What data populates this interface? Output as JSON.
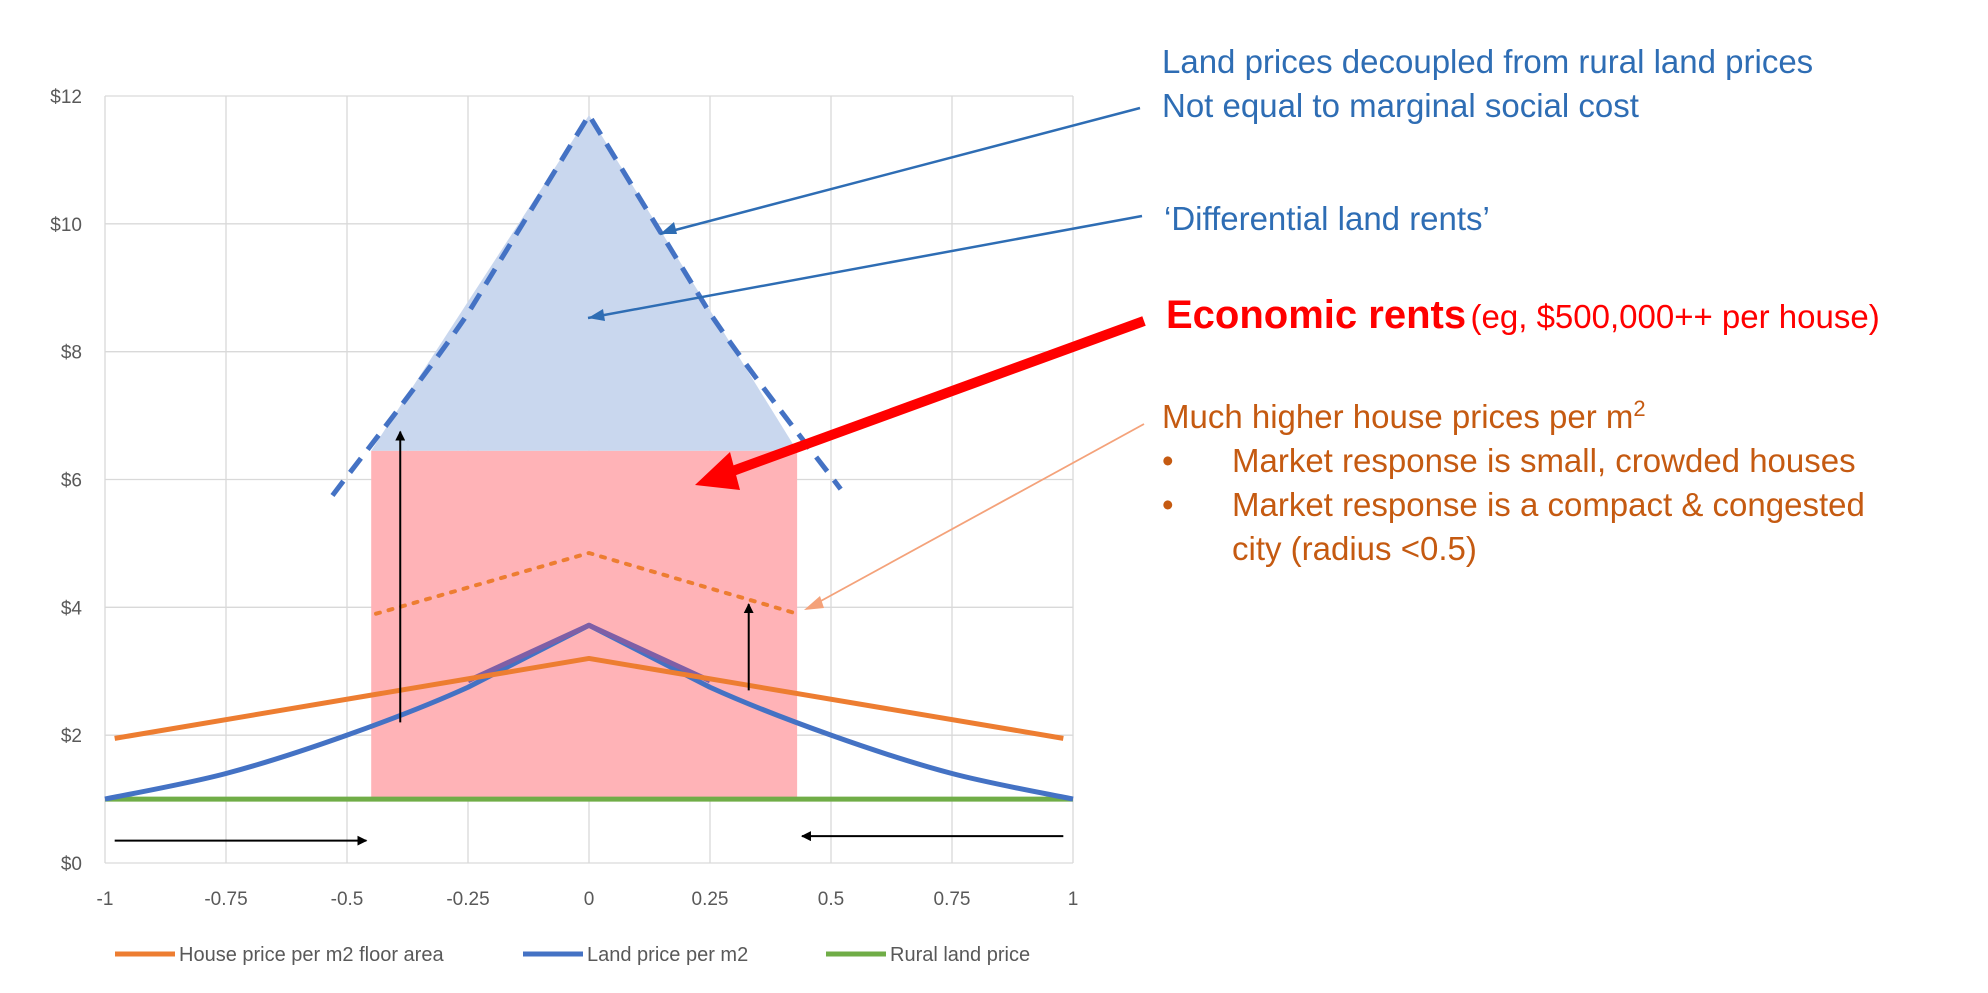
{
  "chart_data": {
    "type": "line",
    "xlim": [
      -1,
      1
    ],
    "ylim": [
      0,
      12
    ],
    "x_ticks": [
      "-1",
      "-0.75",
      "-0.5",
      "-0.25",
      "0",
      "0.25",
      "0.5",
      "0.75",
      "1"
    ],
    "y_ticks": [
      "$0",
      "$2",
      "$4",
      "$6",
      "$8",
      "$10",
      "$12"
    ],
    "grid": true,
    "legend_position": "bottom",
    "series": [
      {
        "name": "House price per m2 floor area",
        "color": "#ED7D31",
        "style": "solid",
        "x": [
          -0.98,
          0,
          0.98
        ],
        "y": [
          1.95,
          3.2,
          1.95
        ]
      },
      {
        "name": "Land price per m2",
        "color": "#4472C4",
        "style": "solid",
        "x": [
          -1,
          -0.75,
          -0.5,
          -0.25,
          0,
          0.25,
          0.5,
          0.75,
          1
        ],
        "y": [
          1.0,
          1.4,
          2.0,
          2.75,
          3.72,
          2.75,
          2.0,
          1.4,
          1.0
        ]
      },
      {
        "name": "Rural land price",
        "color": "#70AD47",
        "style": "solid",
        "x": [
          -1,
          1
        ],
        "y": [
          1.0,
          1.0
        ]
      }
    ],
    "unlabeled_series": [
      {
        "color": "#4472C4",
        "style": "dashed",
        "x": [
          -0.53,
          -0.25,
          0,
          0.25,
          0.52
        ],
        "y": [
          5.75,
          8.6,
          11.7,
          8.6,
          5.85
        ]
      },
      {
        "color": "#ED7D31",
        "style": "dotted",
        "x": [
          -0.44,
          0,
          0.43
        ],
        "y": [
          3.9,
          4.85,
          3.9
        ]
      },
      {
        "color": "#7F5FA6",
        "style": "solid",
        "x": [
          -0.25,
          0,
          0.25
        ],
        "y": [
          2.85,
          3.72,
          2.85
        ]
      }
    ],
    "shaded_regions": [
      {
        "kind": "rect",
        "color": "#FFB3B7",
        "x": [
          -0.45,
          0.43
        ],
        "y": [
          1.0,
          6.45
        ]
      },
      {
        "kind": "triangle",
        "color": "#C9D7EE",
        "x": [
          -0.45,
          0,
          0.43
        ],
        "y": [
          6.45,
          11.7,
          6.45
        ]
      }
    ],
    "arrows": [
      {
        "from": [
          -0.98,
          0.35
        ],
        "to": [
          -0.46,
          0.35
        ]
      },
      {
        "from": [
          0.98,
          0.42
        ],
        "to": [
          0.44,
          0.42
        ]
      },
      {
        "from": [
          -0.39,
          2.2
        ],
        "to": [
          -0.39,
          6.75
        ]
      },
      {
        "from": [
          0.33,
          2.7
        ],
        "to": [
          0.33,
          4.05
        ]
      }
    ]
  },
  "annotations": {
    "decoupled_line1": "Land prices decoupled from rural land prices",
    "decoupled_line2": "Not equal to marginal social cost",
    "differential": "‘Differential land rents’",
    "economic_big": "Economic rents",
    "economic_small": "(eg, $500,000++ per house)",
    "higher_prices": "Much higher house prices per m",
    "higher_prices_sup": "2",
    "bullet_char": "•",
    "bullet1": "Market response is small, crowded houses",
    "bullet2_line1": "Market response is a compact & congested",
    "bullet2_line2": "city (radius <0.5)"
  },
  "colors": {
    "blue_text": "#2E6DB4",
    "red_text": "#FF0000",
    "orange_text": "#C55A11",
    "leader_orange": "#F4A27A"
  }
}
